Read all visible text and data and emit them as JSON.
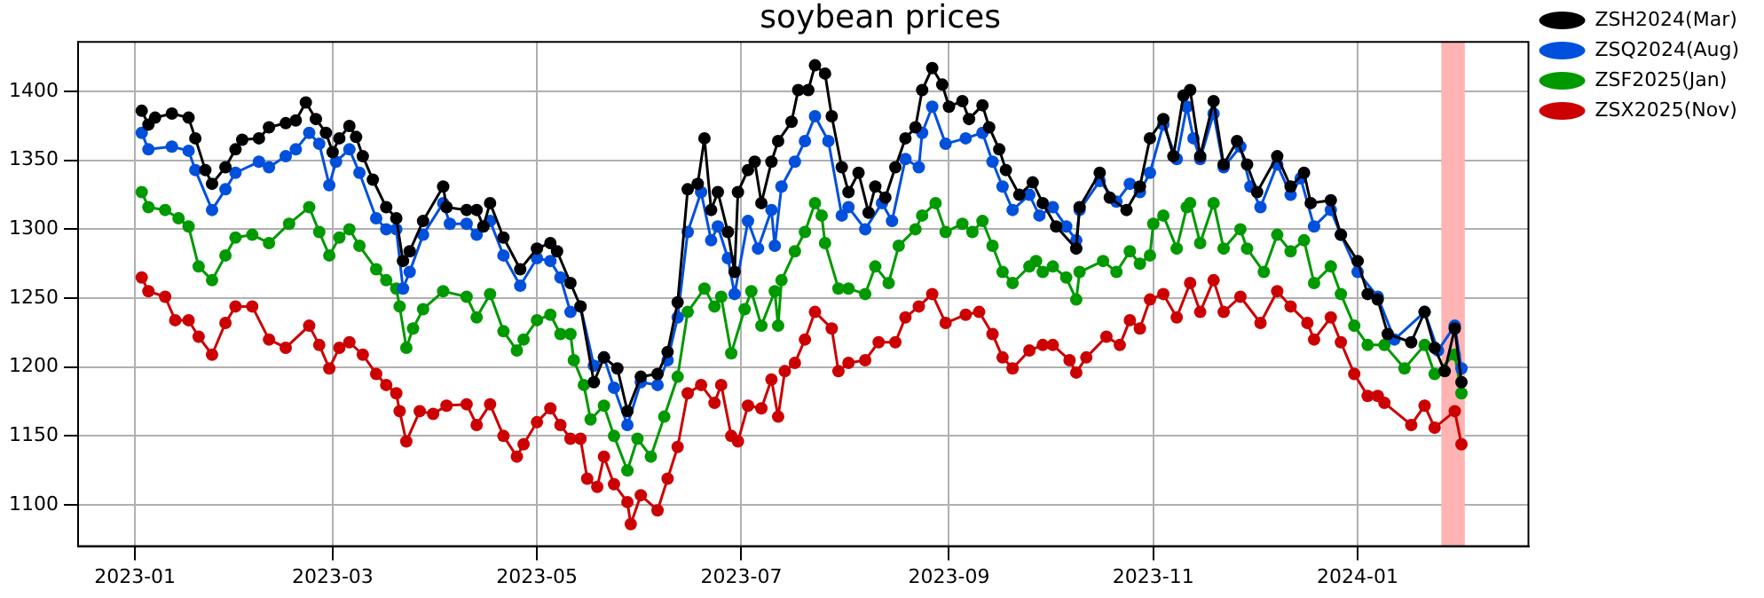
{
  "chart_data": {
    "type": "line",
    "title": "soybean prices",
    "marker": "circle",
    "line_style": "solid",
    "grid": true,
    "legend": "top right",
    "xlim": [
      "2022-12-15",
      "2024-02-21"
    ],
    "xticks": [
      "2023-01",
      "2023-03",
      "2023-05",
      "2023-07",
      "2023-09",
      "2023-11",
      "2024-01"
    ],
    "ylim": [
      1070,
      1436
    ],
    "yticks": [
      1100,
      1150,
      1200,
      1250,
      1300,
      1350,
      1400
    ],
    "bands": [
      {
        "axis": "x",
        "from": "2024-01-26",
        "to": "2024-02-02",
        "color": "#ffb3b3"
      }
    ],
    "series": [
      {
        "name": "ZSH2024(Mar)",
        "color": "#000000",
        "x": [
          "2023-01-03",
          "2023-01-05",
          "2023-01-07",
          "2023-01-12",
          "2023-01-17",
          "2023-01-19",
          "2023-01-22",
          "2023-01-24",
          "2023-01-28",
          "2023-01-31",
          "2023-02-02",
          "2023-02-07",
          "2023-02-10",
          "2023-02-15",
          "2023-02-18",
          "2023-02-21",
          "2023-02-24",
          "2023-02-27",
          "2023-03-01",
          "2023-03-03",
          "2023-03-06",
          "2023-03-08",
          "2023-03-10",
          "2023-03-13",
          "2023-03-17",
          "2023-03-20",
          "2023-03-22",
          "2023-03-24",
          "2023-03-28",
          "2023-04-03",
          "2023-04-04",
          "2023-04-10",
          "2023-04-13",
          "2023-04-15",
          "2023-04-17",
          "2023-04-21",
          "2023-04-26",
          "2023-05-01",
          "2023-05-05",
          "2023-05-07",
          "2023-05-11",
          "2023-05-14",
          "2023-05-18",
          "2023-05-21",
          "2023-05-25",
          "2023-05-28",
          "2023-06-01",
          "2023-06-06",
          "2023-06-09",
          "2023-06-12",
          "2023-06-15",
          "2023-06-18",
          "2023-06-20",
          "2023-06-22",
          "2023-06-24",
          "2023-06-27",
          "2023-06-29",
          "2023-06-30",
          "2023-07-03",
          "2023-07-05",
          "2023-07-07",
          "2023-07-10",
          "2023-07-12",
          "2023-07-16",
          "2023-07-18",
          "2023-07-21",
          "2023-07-23",
          "2023-07-26",
          "2023-07-28",
          "2023-07-31",
          "2023-08-02",
          "2023-08-05",
          "2023-08-08",
          "2023-08-10",
          "2023-08-13",
          "2023-08-16",
          "2023-08-19",
          "2023-08-22",
          "2023-08-24",
          "2023-08-27",
          "2023-08-30",
          "2023-09-01",
          "2023-09-05",
          "2023-09-07",
          "2023-09-11",
          "2023-09-13",
          "2023-09-16",
          "2023-09-18",
          "2023-09-22",
          "2023-09-26",
          "2023-09-29",
          "2023-10-03",
          "2023-10-09",
          "2023-10-10",
          "2023-10-16",
          "2023-10-19",
          "2023-10-24",
          "2023-10-28",
          "2023-10-31",
          "2023-11-04",
          "2023-11-07",
          "2023-11-10",
          "2023-11-12",
          "2023-11-15",
          "2023-11-19",
          "2023-11-22",
          "2023-11-26",
          "2023-11-29",
          "2023-12-02",
          "2023-12-08",
          "2023-12-12",
          "2023-12-16",
          "2023-12-18",
          "2023-12-24",
          "2023-12-27",
          "2024-01-01",
          "2024-01-04",
          "2024-01-07",
          "2024-01-10",
          "2024-01-17",
          "2024-01-21",
          "2024-01-24",
          "2024-01-27",
          "2024-01-30",
          "2024-02-01"
        ],
        "values": [
          1386,
          1376,
          1381,
          1384,
          1381,
          1366,
          1343,
          1333,
          1345,
          1358,
          1365,
          1366,
          1374,
          1377,
          1379,
          1392,
          1380,
          1370,
          1356,
          1366,
          1375,
          1367,
          1353,
          1336,
          1316,
          1308,
          1277,
          1284,
          1306,
          1331,
          1316,
          1314,
          1314,
          1302,
          1319,
          1294,
          1271,
          1286,
          1290,
          1284,
          1261,
          1244,
          1189,
          1207,
          1199,
          1168,
          1193,
          1195,
          1211,
          1247,
          1329,
          1333,
          1366,
          1314,
          1327,
          1298,
          1269,
          1327,
          1343,
          1349,
          1319,
          1349,
          1364,
          1378,
          1401,
          1401,
          1419,
          1413,
          1382,
          1345,
          1327,
          1341,
          1312,
          1331,
          1323,
          1345,
          1366,
          1374,
          1401,
          1417,
          1405,
          1389,
          1393,
          1380,
          1390,
          1374,
          1358,
          1343,
          1325,
          1334,
          1319,
          1302,
          1286,
          1316,
          1341,
          1323,
          1314,
          1331,
          1366,
          1380,
          1353,
          1397,
          1401,
          1353,
          1393,
          1347,
          1364,
          1347,
          1327,
          1353,
          1331,
          1341,
          1319,
          1321,
          1296,
          1277,
          1253,
          1249,
          1224,
          1218,
          1240,
          1214,
          1197,
          1228,
          1189
        ]
      },
      {
        "name": "ZSQ2024(Aug)",
        "color": "#0050dc",
        "x": [
          "2023-01-03",
          "2023-01-05",
          "2023-01-12",
          "2023-01-17",
          "2023-01-19",
          "2023-01-24",
          "2023-01-28",
          "2023-01-31",
          "2023-02-07",
          "2023-02-10",
          "2023-02-15",
          "2023-02-18",
          "2023-02-22",
          "2023-02-25",
          "2023-02-28",
          "2023-03-02",
          "2023-03-06",
          "2023-03-09",
          "2023-03-14",
          "2023-03-17",
          "2023-03-20",
          "2023-03-22",
          "2023-03-24",
          "2023-03-28",
          "2023-04-03",
          "2023-04-05",
          "2023-04-10",
          "2023-04-13",
          "2023-04-17",
          "2023-04-21",
          "2023-04-26",
          "2023-05-01",
          "2023-05-05",
          "2023-05-08",
          "2023-05-11",
          "2023-05-14",
          "2023-05-18",
          "2023-05-21",
          "2023-05-24",
          "2023-05-28",
          "2023-06-01",
          "2023-06-06",
          "2023-06-09",
          "2023-06-12",
          "2023-06-15",
          "2023-06-19",
          "2023-06-22",
          "2023-06-24",
          "2023-06-27",
          "2023-06-29",
          "2023-07-03",
          "2023-07-06",
          "2023-07-10",
          "2023-07-11",
          "2023-07-13",
          "2023-07-17",
          "2023-07-20",
          "2023-07-23",
          "2023-07-27",
          "2023-07-31",
          "2023-08-02",
          "2023-08-07",
          "2023-08-12",
          "2023-08-15",
          "2023-08-19",
          "2023-08-23",
          "2023-08-24",
          "2023-08-27",
          "2023-08-31",
          "2023-09-06",
          "2023-09-11",
          "2023-09-14",
          "2023-09-17",
          "2023-09-20",
          "2023-09-25",
          "2023-09-28",
          "2023-10-02",
          "2023-10-06",
          "2023-10-09",
          "2023-10-10",
          "2023-10-16",
          "2023-10-21",
          "2023-10-25",
          "2023-10-28",
          "2023-10-31",
          "2023-11-04",
          "2023-11-08",
          "2023-11-11",
          "2023-11-13",
          "2023-11-15",
          "2023-11-19",
          "2023-11-22",
          "2023-11-27",
          "2023-11-30",
          "2023-12-03",
          "2023-12-08",
          "2023-12-12",
          "2023-12-15",
          "2023-12-19",
          "2023-12-24",
          "2023-12-27",
          "2024-01-01",
          "2024-01-07",
          "2024-01-12",
          "2024-01-21",
          "2024-01-25",
          "2024-01-30",
          "2024-02-01"
        ],
        "values": [
          1370,
          1358,
          1360,
          1357,
          1343,
          1314,
          1329,
          1341,
          1349,
          1345,
          1353,
          1358,
          1370,
          1362,
          1332,
          1349,
          1358,
          1341,
          1308,
          1300,
          1300,
          1257,
          1269,
          1296,
          1319,
          1304,
          1304,
          1296,
          1306,
          1281,
          1259,
          1279,
          1277,
          1265,
          1240,
          1244,
          1201,
          1207,
          1185,
          1158,
          1189,
          1187,
          1205,
          1236,
          1298,
          1327,
          1292,
          1302,
          1279,
          1253,
          1306,
          1286,
          1314,
          1288,
          1331,
          1349,
          1364,
          1382,
          1364,
          1310,
          1316,
          1300,
          1319,
          1306,
          1351,
          1345,
          1370,
          1389,
          1362,
          1366,
          1370,
          1349,
          1331,
          1314,
          1325,
          1310,
          1316,
          1302,
          1292,
          1314,
          1335,
          1320,
          1333,
          1327,
          1341,
          1376,
          1351,
          1389,
          1366,
          1351,
          1384,
          1345,
          1360,
          1331,
          1316,
          1347,
          1325,
          1337,
          1302,
          1314,
          1296,
          1269,
          1251,
          1220,
          1240,
          1212,
          1230,
          1199
        ]
      },
      {
        "name": "ZSF2025(Jan)",
        "color": "#009900",
        "x": [
          "2023-01-03",
          "2023-01-05",
          "2023-01-10",
          "2023-01-14",
          "2023-01-17",
          "2023-01-20",
          "2023-01-24",
          "2023-01-28",
          "2023-01-31",
          "2023-02-05",
          "2023-02-10",
          "2023-02-16",
          "2023-02-22",
          "2023-02-25",
          "2023-02-28",
          "2023-03-03",
          "2023-03-06",
          "2023-03-09",
          "2023-03-14",
          "2023-03-17",
          "2023-03-20",
          "2023-03-21",
          "2023-03-23",
          "2023-03-25",
          "2023-03-28",
          "2023-04-03",
          "2023-04-10",
          "2023-04-13",
          "2023-04-17",
          "2023-04-21",
          "2023-04-25",
          "2023-04-27",
          "2023-05-01",
          "2023-05-05",
          "2023-05-08",
          "2023-05-11",
          "2023-05-12",
          "2023-05-15",
          "2023-05-17",
          "2023-05-21",
          "2023-05-24",
          "2023-05-28",
          "2023-05-31",
          "2023-06-04",
          "2023-06-08",
          "2023-06-12",
          "2023-06-15",
          "2023-06-20",
          "2023-06-23",
          "2023-06-25",
          "2023-06-28",
          "2023-07-02",
          "2023-07-04",
          "2023-07-07",
          "2023-07-11",
          "2023-07-12",
          "2023-07-13",
          "2023-07-17",
          "2023-07-20",
          "2023-07-23",
          "2023-07-25",
          "2023-07-26",
          "2023-07-30",
          "2023-08-02",
          "2023-08-07",
          "2023-08-10",
          "2023-08-14",
          "2023-08-17",
          "2023-08-22",
          "2023-08-24",
          "2023-08-28",
          "2023-08-31",
          "2023-09-05",
          "2023-09-08",
          "2023-09-11",
          "2023-09-14",
          "2023-09-17",
          "2023-09-20",
          "2023-09-25",
          "2023-09-27",
          "2023-09-29",
          "2023-10-02",
          "2023-10-06",
          "2023-10-09",
          "2023-10-10",
          "2023-10-17",
          "2023-10-21",
          "2023-10-25",
          "2023-10-28",
          "2023-10-31",
          "2023-11-01",
          "2023-11-04",
          "2023-11-08",
          "2023-11-11",
          "2023-11-12",
          "2023-11-15",
          "2023-11-19",
          "2023-11-22",
          "2023-11-27",
          "2023-11-29",
          "2023-12-04",
          "2023-12-08",
          "2023-12-12",
          "2023-12-16",
          "2023-12-19",
          "2023-12-24",
          "2023-12-27",
          "2023-12-31",
          "2024-01-04",
          "2024-01-09",
          "2024-01-15",
          "2024-01-21",
          "2024-01-24",
          "2024-01-30",
          "2024-02-01"
        ],
        "values": [
          1327,
          1316,
          1314,
          1308,
          1302,
          1273,
          1263,
          1281,
          1294,
          1296,
          1290,
          1304,
          1316,
          1298,
          1281,
          1294,
          1300,
          1288,
          1271,
          1263,
          1257,
          1244,
          1214,
          1228,
          1242,
          1255,
          1251,
          1236,
          1253,
          1226,
          1212,
          1220,
          1234,
          1238,
          1224,
          1224,
          1205,
          1187,
          1162,
          1172,
          1150,
          1125,
          1148,
          1135,
          1164,
          1193,
          1240,
          1257,
          1244,
          1251,
          1210,
          1242,
          1255,
          1230,
          1255,
          1230,
          1263,
          1284,
          1298,
          1319,
          1310,
          1290,
          1257,
          1257,
          1253,
          1273,
          1261,
          1288,
          1300,
          1310,
          1319,
          1298,
          1304,
          1298,
          1306,
          1288,
          1269,
          1261,
          1273,
          1277,
          1269,
          1273,
          1265,
          1249,
          1269,
          1277,
          1269,
          1284,
          1275,
          1281,
          1304,
          1310,
          1286,
          1316,
          1319,
          1290,
          1319,
          1286,
          1300,
          1286,
          1269,
          1296,
          1284,
          1292,
          1261,
          1273,
          1253,
          1230,
          1216,
          1216,
          1199,
          1216,
          1195,
          1209,
          1181
        ]
      },
      {
        "name": "ZSX2025(Nov)",
        "color": "#cc0000",
        "x": [
          "2023-01-03",
          "2023-01-05",
          "2023-01-10",
          "2023-01-13",
          "2023-01-17",
          "2023-01-20",
          "2023-01-24",
          "2023-01-28",
          "2023-01-31",
          "2023-02-05",
          "2023-02-10",
          "2023-02-15",
          "2023-02-22",
          "2023-02-25",
          "2023-02-28",
          "2023-03-03",
          "2023-03-06",
          "2023-03-10",
          "2023-03-14",
          "2023-03-17",
          "2023-03-20",
          "2023-03-21",
          "2023-03-23",
          "2023-03-27",
          "2023-03-31",
          "2023-04-04",
          "2023-04-10",
          "2023-04-13",
          "2023-04-17",
          "2023-04-21",
          "2023-04-25",
          "2023-04-27",
          "2023-05-01",
          "2023-05-05",
          "2023-05-08",
          "2023-05-11",
          "2023-05-14",
          "2023-05-16",
          "2023-05-19",
          "2023-05-21",
          "2023-05-24",
          "2023-05-28",
          "2023-05-29",
          "2023-06-01",
          "2023-06-06",
          "2023-06-09",
          "2023-06-12",
          "2023-06-15",
          "2023-06-19",
          "2023-06-23",
          "2023-06-25",
          "2023-06-28",
          "2023-06-30",
          "2023-07-03",
          "2023-07-07",
          "2023-07-10",
          "2023-07-12",
          "2023-07-14",
          "2023-07-17",
          "2023-07-20",
          "2023-07-23",
          "2023-07-28",
          "2023-07-30",
          "2023-08-02",
          "2023-08-07",
          "2023-08-11",
          "2023-08-16",
          "2023-08-19",
          "2023-08-23",
          "2023-08-27",
          "2023-08-31",
          "2023-09-06",
          "2023-09-10",
          "2023-09-14",
          "2023-09-17",
          "2023-09-20",
          "2023-09-25",
          "2023-09-29",
          "2023-10-02",
          "2023-10-07",
          "2023-10-09",
          "2023-10-12",
          "2023-10-18",
          "2023-10-22",
          "2023-10-25",
          "2023-10-28",
          "2023-10-31",
          "2023-11-04",
          "2023-11-08",
          "2023-11-12",
          "2023-11-15",
          "2023-11-19",
          "2023-11-22",
          "2023-11-27",
          "2023-12-03",
          "2023-12-08",
          "2023-12-12",
          "2023-12-17",
          "2023-12-19",
          "2023-12-24",
          "2023-12-27",
          "2023-12-31",
          "2024-01-04",
          "2024-01-07",
          "2024-01-09",
          "2024-01-17",
          "2024-01-21",
          "2024-01-24",
          "2024-01-30",
          "2024-02-01"
        ],
        "values": [
          1265,
          1255,
          1251,
          1234,
          1234,
          1222,
          1209,
          1232,
          1244,
          1244,
          1220,
          1214,
          1230,
          1216,
          1199,
          1214,
          1218,
          1209,
          1195,
          1187,
          1181,
          1168,
          1146,
          1168,
          1166,
          1172,
          1173,
          1158,
          1173,
          1150,
          1135,
          1144,
          1160,
          1170,
          1158,
          1148,
          1148,
          1119,
          1113,
          1135,
          1115,
          1102,
          1086,
          1107,
          1096,
          1119,
          1142,
          1181,
          1187,
          1174,
          1187,
          1150,
          1146,
          1172,
          1170,
          1191,
          1164,
          1197,
          1203,
          1220,
          1240,
          1228,
          1197,
          1203,
          1205,
          1218,
          1218,
          1236,
          1244,
          1253,
          1232,
          1238,
          1240,
          1224,
          1207,
          1199,
          1212,
          1216,
          1216,
          1205,
          1196,
          1207,
          1222,
          1216,
          1234,
          1228,
          1249,
          1253,
          1236,
          1261,
          1240,
          1263,
          1240,
          1251,
          1232,
          1255,
          1244,
          1232,
          1220,
          1236,
          1218,
          1195,
          1179,
          1179,
          1174,
          1158,
          1172,
          1156,
          1168,
          1144
        ]
      }
    ]
  }
}
